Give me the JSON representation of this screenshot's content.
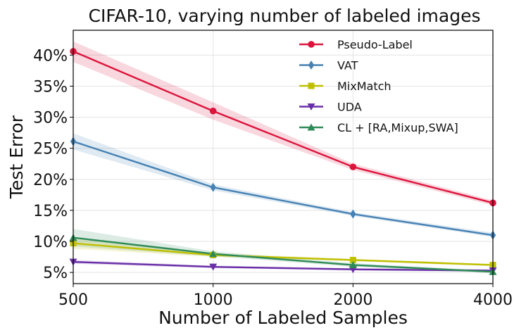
{
  "chart_data": {
    "type": "line",
    "title": "CIFAR-10, varying number of labeled images",
    "xlabel": "Number of Labeled Samples",
    "ylabel": "Test Error",
    "x": [
      500,
      1000,
      2000,
      4000
    ],
    "x_tick_labels": [
      "500",
      "1000",
      "2000",
      "4000"
    ],
    "x_scale": "categorical-equal-spacing",
    "ylim": [
      3.2,
      44.0
    ],
    "y_ticks": [
      5,
      10,
      15,
      20,
      25,
      30,
      35,
      40
    ],
    "y_tick_labels": [
      "5%",
      "10%",
      "15%",
      "20%",
      "25%",
      "30%",
      "35%",
      "40%"
    ],
    "grid": true,
    "legend_position": "top-right",
    "series": [
      {
        "name": "Pseudo-Label",
        "color": "#dc143c",
        "marker": "circle",
        "values": [
          40.6,
          31.0,
          22.0,
          16.2
        ],
        "lower": [
          38.9,
          29.6,
          21.5,
          15.8
        ],
        "upper": [
          42.2,
          32.4,
          22.5,
          16.6
        ]
      },
      {
        "name": "VAT",
        "color": "#4682b4",
        "marker": "diamond",
        "values": [
          26.1,
          18.7,
          14.4,
          11.0
        ],
        "lower": [
          24.8,
          18.2,
          14.1,
          10.7
        ],
        "upper": [
          27.4,
          19.2,
          14.7,
          11.4
        ]
      },
      {
        "name": "MixMatch",
        "color": "#bfbf00",
        "marker": "square",
        "values": [
          9.7,
          7.8,
          7.0,
          6.2
        ],
        "lower": [
          8.8,
          7.5,
          6.8,
          6.0
        ],
        "upper": [
          10.6,
          8.1,
          7.2,
          6.4
        ]
      },
      {
        "name": "UDA",
        "color": "#6a2fa8",
        "marker": "triangle-down",
        "values": [
          6.7,
          5.9,
          5.5,
          5.3
        ],
        "lower": [
          6.4,
          5.7,
          5.3,
          5.1
        ],
        "upper": [
          7.0,
          6.1,
          5.7,
          5.5
        ]
      },
      {
        "name": "CL + [RA,Mixup,SWA]",
        "color": "#2e8b57",
        "marker": "triangle-up",
        "values": [
          10.6,
          8.0,
          6.2,
          5.1
        ],
        "lower": [
          9.2,
          7.6,
          5.9,
          4.9
        ],
        "upper": [
          12.0,
          8.4,
          6.5,
          5.3
        ]
      }
    ]
  }
}
